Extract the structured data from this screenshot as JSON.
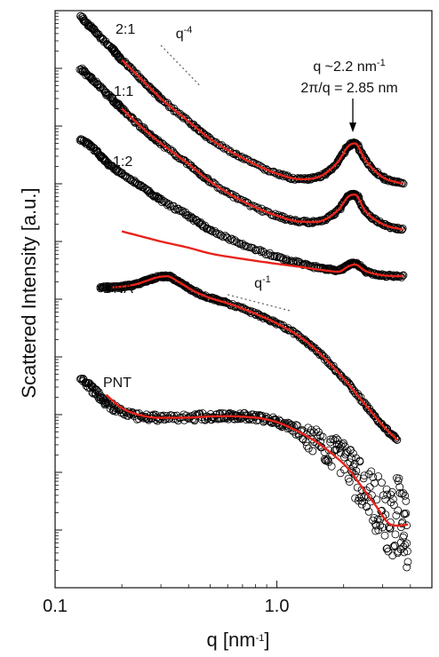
{
  "chart_data": {
    "type": "scatter",
    "title": "",
    "xlabel": "q [nm",
    "xlabel_sup": "-1",
    "xlabel_end": "]",
    "ylabel": "Scattered Intensity [a.u.]",
    "xscale": "log",
    "yscale": "log",
    "xlim": [
      0.1,
      5.0
    ],
    "ylim": [
      1,
      10000000000.0
    ],
    "x_ticks": [
      {
        "value": 0.1,
        "label": "0.1"
      },
      {
        "value": 1.0,
        "label": "1.0"
      }
    ],
    "grid": false,
    "legend": "none",
    "marker": {
      "shape": "open-circle",
      "color": "#000000"
    },
    "fit_color": "#e8231a",
    "series": [
      {
        "name": "2:1",
        "x": [
          0.13,
          0.15,
          0.18,
          0.2,
          0.25,
          0.3,
          0.4,
          0.5,
          0.7,
          1.0,
          1.3,
          1.6,
          1.9,
          2.1,
          2.25,
          2.5,
          3.0,
          3.7
        ],
        "y": [
          8000000000.0,
          4500000000.0,
          2200000000.0,
          1400000000.0,
          600000000.0,
          300000000.0,
          120000000.0,
          60000000.0,
          28000000.0,
          15000000.0,
          12000000.0,
          14000000.0,
          25000000.0,
          45000000.0,
          50000000.0,
          26000000.0,
          13000000.0,
          10000000.0
        ],
        "fit_x": [
          0.2,
          0.25,
          0.3,
          0.4,
          0.5,
          0.7,
          1.0,
          1.3,
          1.6,
          1.9,
          2.1,
          2.25,
          2.5,
          3.0,
          3.7
        ],
        "fit_y": [
          1400000000.0,
          600000000.0,
          300000000.0,
          120000000.0,
          60000000.0,
          28000000.0,
          15000000.0,
          12000000.0,
          14000000.0,
          25000000.0,
          45000000.0,
          50000000.0,
          26000000.0,
          13000000.0,
          10000000.0
        ]
      },
      {
        "name": "1:1",
        "x": [
          0.13,
          0.15,
          0.18,
          0.2,
          0.25,
          0.3,
          0.4,
          0.5,
          0.7,
          1.0,
          1.3,
          1.6,
          1.9,
          2.1,
          2.25,
          2.5,
          3.0,
          3.7
        ],
        "y": [
          1000000000.0,
          600000000.0,
          300000000.0,
          200000000.0,
          90000000.0,
          50000000.0,
          22000000.0,
          11000000.0,
          5000000.0,
          2800000.0,
          2200000.0,
          2300000.0,
          3600000.0,
          6000000.0,
          6500000.0,
          3400000.0,
          2000000.0,
          1600000.0
        ],
        "fit_x": [
          0.2,
          0.25,
          0.3,
          0.4,
          0.5,
          0.7,
          1.0,
          1.3,
          1.6,
          1.9,
          2.1,
          2.25,
          2.5,
          3.0,
          3.7
        ],
        "fit_y": [
          200000000.0,
          90000000.0,
          50000000.0,
          22000000.0,
          11000000.0,
          5000000.0,
          2800000.0,
          2200000.0,
          2300000.0,
          3600000.0,
          6000000.0,
          6500000.0,
          3400000.0,
          2000000.0,
          1600000.0
        ]
      },
      {
        "name": "1:2",
        "x": [
          0.13,
          0.15,
          0.17,
          0.2,
          0.25,
          0.3,
          0.4,
          0.5,
          0.7,
          1.0,
          1.3,
          1.6,
          1.9,
          2.1,
          2.25,
          2.5,
          3.0,
          3.7
        ],
        "y": [
          60000000.0,
          40000000.0,
          24000000.0,
          15000000.0,
          8500000.0,
          5200000.0,
          2800000.0,
          1600000.0,
          900000.0,
          540000.0,
          410000.0,
          340000.0,
          320000.0,
          390000.0,
          420000.0,
          310000.0,
          260000.0,
          250000.0
        ],
        "fit_x": [
          0.2,
          0.25,
          0.3,
          0.4,
          0.5,
          0.7,
          1.0,
          1.3,
          1.6,
          1.9,
          2.1,
          2.25,
          2.5,
          3.0,
          3.7
        ],
        "fit_y": [
          1500000.0,
          1200000.0,
          1000000.0,
          780000.0,
          620000.0,
          500000.0,
          410000.0,
          360000.0,
          320000.0,
          300000.0,
          370000.0,
          400000.0,
          310000.0,
          260000.0,
          250000.0
        ]
      },
      {
        "name": "DNA",
        "x": [
          0.16,
          0.18,
          0.2,
          0.23,
          0.26,
          0.29,
          0.32,
          0.36,
          0.42,
          0.5,
          0.6,
          0.8,
          1.0,
          1.3,
          1.6,
          2.0,
          2.5,
          3.0,
          3.5
        ],
        "y": [
          160000.0,
          160000.0,
          165000.0,
          180000.0,
          210000.0,
          240000.0,
          250000.0,
          200000.0,
          140000.0,
          105000.0,
          85000.0,
          56000.0,
          38000.0,
          21000.0,
          10500.0,
          4200.0,
          1500.0,
          650.0,
          360.0
        ],
        "fit_x": [
          0.18,
          0.2,
          0.23,
          0.26,
          0.29,
          0.32,
          0.36,
          0.42,
          0.5,
          0.6,
          0.8,
          1.0,
          1.3,
          1.6,
          2.0,
          2.5,
          3.0,
          3.5
        ],
        "fit_y": [
          160000.0,
          165000.0,
          180000.0,
          210000.0,
          240000.0,
          250000.0,
          200000.0,
          140000.0,
          105000.0,
          85000.0,
          56000.0,
          38000.0,
          21000.0,
          10500.0,
          4200.0,
          1500.0,
          650.0,
          360.0
        ]
      },
      {
        "name": "PNT",
        "x": [
          0.13,
          0.15,
          0.17,
          0.2,
          0.25,
          0.3,
          0.4,
          0.5,
          0.6,
          0.7,
          0.85,
          1.0,
          1.2,
          1.5,
          1.8,
          2.1,
          2.4,
          2.8,
          3.2,
          3.6,
          3.9
        ],
        "y": [
          4000.0,
          2600.0,
          1600.0,
          1150.0,
          900.0,
          880.0,
          890.0,
          930.0,
          950.0,
          940.0,
          880.0,
          750.0,
          560.0,
          340.0,
          200.0,
          115.0,
          60.0,
          28.0,
          13.0,
          20.0,
          5.0
        ],
        "fit_x": [
          0.17,
          0.2,
          0.25,
          0.3,
          0.4,
          0.5,
          0.6,
          0.7,
          0.85,
          1.0,
          1.2,
          1.5,
          1.8,
          2.1,
          2.4,
          2.8,
          3.2,
          3.6,
          3.9
        ],
        "fit_y": [
          2200.0,
          1300.0,
          950.0,
          880.0,
          890.0,
          930.0,
          940.0,
          920.0,
          860.0,
          740.0,
          550.0,
          340.0,
          200.0,
          115.0,
          58.0,
          26.0,
          13.0,
          12.0,
          12.5
        ]
      }
    ],
    "reference_slopes": [
      {
        "label": "q",
        "label_sup": "-4",
        "x": [
          0.3,
          0.45
        ],
        "y": [
          2500000000.0,
          500000000.0
        ]
      },
      {
        "label": "q",
        "label_sup": "-1",
        "x": [
          0.6,
          1.15
        ],
        "y": [
          120000.0,
          63000.0
        ]
      }
    ],
    "annotations": [
      {
        "line1": "q ~2.2 nm",
        "line1_sup": "-1",
        "line2": "2π/q = 2.85 nm",
        "arrow_x": 2.2,
        "arrow_y_start": 200000000.0,
        "arrow_y_end": 65000000.0
      }
    ]
  }
}
